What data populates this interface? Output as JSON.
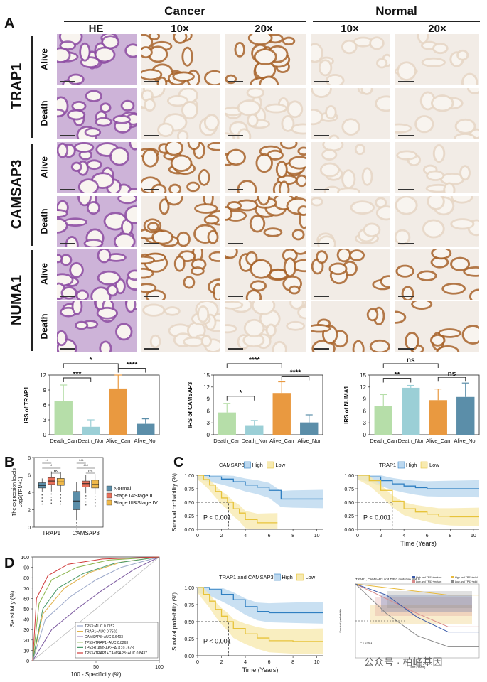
{
  "panelA": {
    "letter": "A",
    "group_cancer": "Cancer",
    "group_normal": "Normal",
    "columns": [
      "HE",
      "10×",
      "20×",
      "10×",
      "20×"
    ],
    "genes": [
      {
        "name": "TRAP1",
        "rows": [
          "Alive",
          "Death"
        ]
      },
      {
        "name": "CAMSAP3",
        "rows": [
          "Alive",
          "Death"
        ]
      },
      {
        "name": "NUMA1",
        "rows": [
          "Alive",
          "Death"
        ]
      }
    ],
    "tile_colors": {
      "he": "#8e4fa3",
      "he_light": "#cdb3d8",
      "ihc_strong": "#a8642b",
      "ihc_light": "#e6d6c4",
      "background": "#f2ece6"
    }
  },
  "irs_charts": [
    {
      "type": "bar",
      "ylabel": "IRS of TRAP1",
      "categories": [
        "Death_Can",
        "Death_Nor",
        "Alive_Can",
        "Alive_Nor"
      ],
      "values": [
        6.8,
        1.6,
        9.3,
        2.2
      ],
      "errors": [
        3.2,
        1.4,
        2.9,
        1.0
      ],
      "ylim": [
        0,
        12
      ],
      "yticks": [
        0,
        3,
        6,
        9,
        12
      ],
      "colors": [
        "#b6dea9",
        "#9bcfd6",
        "#e99940",
        "#5b8ea9"
      ],
      "significance": [
        {
          "from": 0,
          "to": 2,
          "label": "*"
        },
        {
          "from": 0,
          "to": 1,
          "label": "***"
        },
        {
          "from": 2,
          "to": 3,
          "label": "****"
        }
      ]
    },
    {
      "type": "bar",
      "ylabel": "IRS of CAMSAP3",
      "categories": [
        "Death_Can",
        "Death_Nor",
        "Alive_Can",
        "Alive_Nor"
      ],
      "values": [
        5.6,
        2.4,
        10.5,
        3.1
      ],
      "errors": [
        2.3,
        1.2,
        2.8,
        1.9
      ],
      "ylim": [
        0,
        15
      ],
      "yticks": [
        0,
        3,
        6,
        9,
        12,
        15
      ],
      "colors": [
        "#b6dea9",
        "#9bcfd6",
        "#e99940",
        "#5b8ea9"
      ],
      "significance": [
        {
          "from": 0,
          "to": 2,
          "label": "****"
        },
        {
          "from": 0,
          "to": 1,
          "label": "*"
        },
        {
          "from": 2,
          "to": 3,
          "label": "****"
        }
      ]
    },
    {
      "type": "bar",
      "ylabel": "IRS of NUMA1",
      "categories": [
        "Death_Can",
        "Death_Nor",
        "Alive_Can",
        "Alive_Nor"
      ],
      "values": [
        7.2,
        11.8,
        8.7,
        9.5
      ],
      "errors": [
        2.9,
        0.6,
        2.8,
        3.5
      ],
      "ylim": [
        0,
        15
      ],
      "yticks": [
        0,
        3,
        6,
        9,
        12,
        15
      ],
      "colors": [
        "#b6dea9",
        "#9bcfd6",
        "#e99940",
        "#5b8ea9"
      ],
      "significance": [
        {
          "from": 0,
          "to": 2,
          "label": "ns"
        },
        {
          "from": 0,
          "to": 1,
          "label": "**"
        },
        {
          "from": 2,
          "to": 3,
          "label": "ns"
        }
      ]
    }
  ],
  "panelB": {
    "letter": "B",
    "chart_data": {
      "type": "box",
      "ylabel_line1": "The expression levels",
      "ylabel_line2": "Log2(TPM+1)",
      "categories": [
        "TRAP1",
        "CAMSAP3"
      ],
      "yticks": [
        0,
        2,
        4,
        6,
        8
      ],
      "ylim": [
        0,
        8
      ],
      "legend": [
        "Normal",
        "Stage I&Stage II",
        "Stage III&Stage IV"
      ],
      "colors": [
        "#5b8ea9",
        "#e8705a",
        "#f0b94a"
      ],
      "boxes": [
        [
          {
            "q1": 4.5,
            "med": 4.8,
            "q3": 5.1,
            "lo": 4.0,
            "hi": 5.6
          },
          {
            "q1": 4.9,
            "med": 5.3,
            "q3": 5.7,
            "lo": 4.1,
            "hi": 6.4
          },
          {
            "q1": 4.8,
            "med": 5.2,
            "q3": 5.6,
            "lo": 4.0,
            "hi": 6.3
          }
        ],
        [
          {
            "q1": 2.0,
            "med": 3.0,
            "q3": 4.1,
            "lo": 0.8,
            "hi": 5.2
          },
          {
            "q1": 4.6,
            "med": 5.0,
            "q3": 5.3,
            "lo": 3.9,
            "hi": 6.0
          },
          {
            "q1": 4.5,
            "med": 4.9,
            "q3": 5.4,
            "lo": 3.8,
            "hi": 6.1
          }
        ]
      ],
      "significance": [
        {
          "cat": 0,
          "items": [
            "**",
            "*",
            "ns"
          ]
        },
        {
          "cat": 1,
          "items": [
            "***",
            "***",
            "ns"
          ]
        }
      ]
    }
  },
  "panelC": {
    "letter": "C",
    "charts": [
      {
        "type": "line",
        "legend_title": "CAMSAP3",
        "legend": [
          "High",
          "Low"
        ],
        "pvalue": "P < 0.001",
        "ylabel": "Survival probability (%)",
        "xlabel": "",
        "xticks": [
          0,
          2,
          4,
          6,
          8,
          10
        ],
        "yticks": [
          "0.00",
          "0.25",
          "0.50",
          "0.75",
          "1.00"
        ],
        "median_x": 2.6,
        "series": [
          {
            "name": "High",
            "x": [
              0,
              1,
              2,
              3,
              4,
              5,
              6,
              7,
              8,
              10.5
            ],
            "y": [
              1.0,
              0.97,
              0.93,
              0.88,
              0.82,
              0.78,
              0.72,
              0.56,
              0.56,
              0.56
            ]
          },
          {
            "name": "Low",
            "x": [
              0,
              0.5,
              1,
              1.5,
              2,
              2.5,
              3,
              3.5,
              4,
              5,
              6.7
            ],
            "y": [
              1.0,
              0.92,
              0.82,
              0.7,
              0.58,
              0.5,
              0.38,
              0.3,
              0.18,
              0.12,
              0.12
            ]
          }
        ]
      },
      {
        "type": "line",
        "legend_title": "TRAP1",
        "legend": [
          "High",
          "Low"
        ],
        "pvalue": "P < 0.001",
        "ylabel": "",
        "xlabel": "Time (Years)",
        "xticks": [
          0,
          2,
          4,
          6,
          8,
          10
        ],
        "yticks": [
          "0.00",
          "0.25",
          "0.50",
          "0.75",
          "1.00"
        ],
        "median_x": 3.0,
        "series": [
          {
            "name": "High",
            "x": [
              0,
              1,
              2,
              3,
              4,
              5,
              6,
              8,
              10.5
            ],
            "y": [
              1.0,
              0.97,
              0.9,
              0.84,
              0.8,
              0.77,
              0.75,
              0.75,
              0.75
            ]
          },
          {
            "name": "Low",
            "x": [
              0,
              1,
              2,
              3,
              4,
              5,
              6,
              7,
              8,
              10.5
            ],
            "y": [
              1.0,
              0.9,
              0.72,
              0.52,
              0.38,
              0.32,
              0.28,
              0.24,
              0.23,
              0.23
            ]
          }
        ]
      },
      {
        "type": "line",
        "legend_title": "TRAP1 and CAMSAP3",
        "legend": [
          "High",
          "Low"
        ],
        "pvalue": "P < 0.001",
        "ylabel": "Survival probability (%)",
        "xlabel": "Time (Years)",
        "xticks": [
          0,
          2,
          4,
          6,
          8,
          10
        ],
        "yticks": [
          "0.00",
          "0.25",
          "0.50",
          "0.75",
          "1.00"
        ],
        "median_x": 2.6,
        "series": [
          {
            "name": "High",
            "x": [
              0,
              1,
              2,
              3,
              4,
              5,
              6,
              8,
              10.5
            ],
            "y": [
              1.0,
              0.97,
              0.9,
              0.82,
              0.72,
              0.65,
              0.63,
              0.63,
              0.63
            ]
          },
          {
            "name": "Low",
            "x": [
              0,
              0.5,
              1,
              1.5,
              2,
              2.5,
              3,
              4,
              5,
              6,
              8,
              10.5
            ],
            "y": [
              1.0,
              0.9,
              0.8,
              0.68,
              0.58,
              0.5,
              0.4,
              0.32,
              0.26,
              0.22,
              0.21,
              0.21
            ]
          }
        ]
      }
    ],
    "small_chart": {
      "title": "TRAP1, CAMSAP3 and TP53 mutation status",
      "legend": [
        "high and TP53+mutant",
        "high and TP53+wild",
        "Low and TP53+mutant",
        "Low and TP53+wild"
      ],
      "pvalue": "P < 0.001",
      "xlabel": "Time (Years)",
      "ylabel": "Survival probability",
      "colors": [
        "#3b5ba9",
        "#e7b93c",
        "#d88a8a",
        "#888888"
      ]
    }
  },
  "panelD": {
    "letter": "D",
    "chart_data": {
      "type": "line",
      "xlabel": "100 - Specificity (%)",
      "ylabel": "Sensitivity (%)",
      "xticks": [
        50,
        100
      ],
      "yticks": [
        0,
        10,
        20,
        30,
        40,
        50,
        60,
        70,
        80,
        90,
        100
      ],
      "legend": [
        {
          "label": "TP53~AUC 0.7152",
          "color": "#9aa7c9"
        },
        {
          "label": "TRAP1~AUC 0.7502",
          "color": "#e0b14a"
        },
        {
          "label": "CAMSAP3~AUC 0.6403",
          "color": "#7c5aa0"
        },
        {
          "label": "TP53+TRAP1~AUC 0.8263",
          "color": "#8ab34a"
        },
        {
          "label": "TP53+CAMSAP3~AUC 0.7673",
          "color": "#4a9a6a"
        },
        {
          "label": "TP53+TRAP1+CAMSAP3~AUC 0.8437",
          "color": "#d03a3a"
        }
      ],
      "series": [
        {
          "name": "TP53",
          "x": [
            0,
            10,
            30,
            50,
            70,
            100
          ],
          "y": [
            0,
            40,
            62,
            78,
            90,
            100
          ]
        },
        {
          "name": "TRAP1",
          "x": [
            0,
            8,
            25,
            45,
            70,
            100
          ],
          "y": [
            0,
            45,
            70,
            85,
            95,
            100
          ]
        },
        {
          "name": "CAMSAP3",
          "x": [
            0,
            15,
            35,
            55,
            80,
            100
          ],
          "y": [
            0,
            30,
            50,
            68,
            88,
            100
          ]
        },
        {
          "name": "TP53+TRAP1",
          "x": [
            0,
            5,
            15,
            35,
            60,
            100
          ],
          "y": [
            0,
            55,
            78,
            90,
            97,
            100
          ]
        },
        {
          "name": "TP53+CAMSAP3",
          "x": [
            0,
            8,
            20,
            40,
            65,
            100
          ],
          "y": [
            0,
            50,
            70,
            84,
            94,
            100
          ]
        },
        {
          "name": "TP53+TRAP1+CAMSAP3",
          "x": [
            0,
            3,
            12,
            28,
            55,
            100
          ],
          "y": [
            0,
            60,
            82,
            93,
            98,
            100
          ]
        }
      ]
    }
  },
  "watermark": "公众号 · 柏峰基因"
}
